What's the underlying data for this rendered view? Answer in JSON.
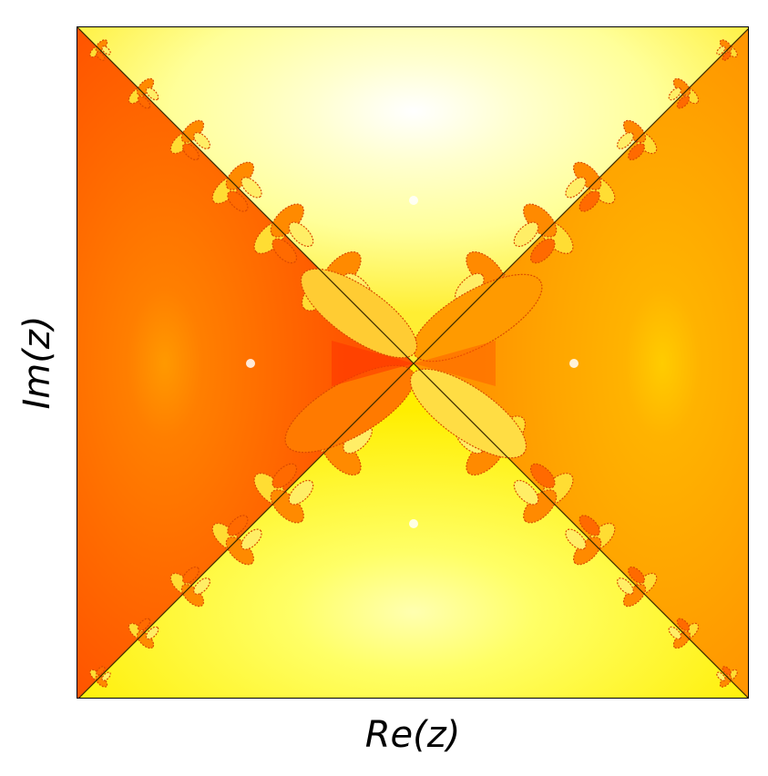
{
  "figure": {
    "xlabel": "Re(z)",
    "ylabel": "Im(z)"
  },
  "colors": {
    "deep": "#ff3300",
    "orange_left": "#ff6a00",
    "orange_right": "#ffa500",
    "yellow": "#ffee00",
    "pale": "#ffff99",
    "white": "#ffffff",
    "dark_line": "#3a2a00"
  }
}
